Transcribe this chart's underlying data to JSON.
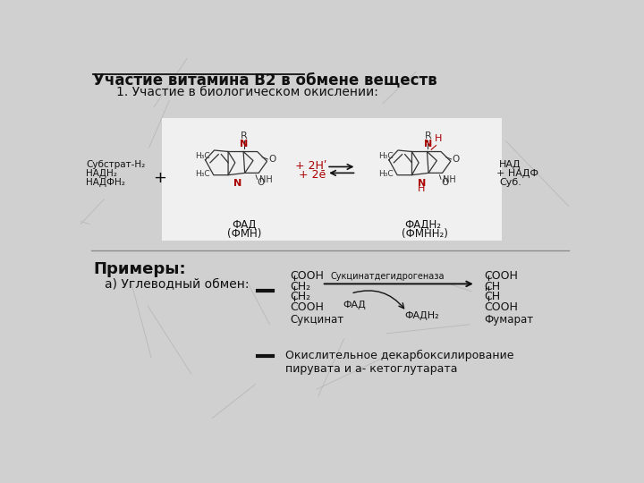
{
  "title": "Участие витамина В2 в обмене веществ",
  "subtitle": "1. Участие в биологическом окислении:",
  "bg_color": "#d0d0d0",
  "white_panel": "#f0f0f0",
  "text_color": "#111111",
  "red_color": "#aa0000",
  "dark_color": "#333333",
  "fad_label_1": "ФАД",
  "fad_label_2": "(ФМН)",
  "fadh2_label_1": "ФАДН₂",
  "fadh2_label_2": "(ФМНН₂)",
  "left_line1": "Субстрат-Н₂",
  "left_line2": "НАДН₂",
  "left_line3": "НАДФН₂",
  "right_line1": "НАД",
  "right_line2": "+ НАДФ",
  "right_line3": "Суб.",
  "plus_sign": "+",
  "plus2h": "+ 2Hʹ",
  "plus2e": "+ 2е̄",
  "examples_title": "Примеры:",
  "example_a_label": "а) Углеводный обмен:",
  "dash_marker": "—",
  "succinate_title": "Сукцинат",
  "fumarate_title": "Фумарат",
  "enzyme": "Сукцинатдегидрогеназа",
  "fad_s": "ФАД",
  "fadh2_s": "ФАДН₂",
  "example_b": "Окислительное декарбоксилирование\nпирувата и а- кетоглутарата"
}
